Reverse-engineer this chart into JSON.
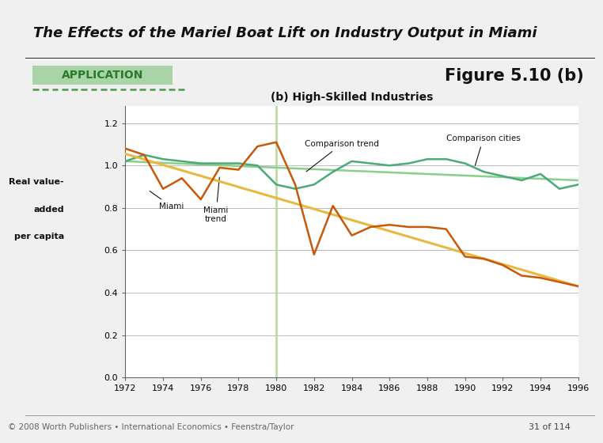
{
  "title": "The Effects of the Mariel Boat Lift on Industry Output in Miami",
  "title_bg": "#4a72b8",
  "subtitle": "APPLICATION",
  "figure_label": "Figure 5.10 (b)",
  "chart_title": "(b) High-Skilled Industries",
  "ylabel_line1": "Real value-",
  "ylabel_line2": "added",
  "ylabel_line3": "per capita",
  "xlim": [
    1972,
    1996
  ],
  "ylim": [
    0.0,
    1.28
  ],
  "yticks": [
    0.0,
    0.2,
    0.4,
    0.6,
    0.8,
    1.0,
    1.2
  ],
  "xticks": [
    1972,
    1974,
    1976,
    1978,
    1980,
    1982,
    1984,
    1986,
    1988,
    1990,
    1992,
    1994,
    1996
  ],
  "vline_x": 1980,
  "vline_color": "#b8d89a",
  "footer": "© 2008 Worth Publishers • International Economics • Feenstra/Taylor",
  "page": "31 of 114",
  "miami_x": [
    1972,
    1973,
    1974,
    1975,
    1976,
    1977,
    1978,
    1979,
    1980,
    1981,
    1982,
    1983,
    1984,
    1985,
    1986,
    1987,
    1988,
    1989,
    1990,
    1991,
    1992,
    1993,
    1994,
    1995,
    1996
  ],
  "miami_y": [
    1.08,
    1.05,
    0.89,
    0.94,
    0.84,
    0.99,
    0.98,
    1.09,
    1.11,
    0.91,
    0.58,
    0.81,
    0.67,
    0.71,
    0.72,
    0.71,
    0.71,
    0.7,
    0.57,
    0.56,
    0.53,
    0.48,
    0.47,
    0.45,
    0.43
  ],
  "miami_color": "#c8580a",
  "miami_trend_x": [
    1972,
    1996
  ],
  "miami_trend_y": [
    1.055,
    0.43
  ],
  "miami_trend_color": "#e8b840",
  "comparison_cities_x": [
    1972,
    1973,
    1974,
    1975,
    1976,
    1977,
    1978,
    1979,
    1980,
    1981,
    1982,
    1983,
    1984,
    1985,
    1986,
    1987,
    1988,
    1989,
    1990,
    1991,
    1992,
    1993,
    1994,
    1995,
    1996
  ],
  "comparison_cities_y": [
    1.02,
    1.05,
    1.03,
    1.02,
    1.01,
    1.01,
    1.01,
    1.0,
    0.91,
    0.89,
    0.91,
    0.97,
    1.02,
    1.01,
    1.0,
    1.01,
    1.03,
    1.03,
    1.01,
    0.97,
    0.95,
    0.93,
    0.96,
    0.89,
    0.91
  ],
  "comparison_cities_color": "#4aaa78",
  "comparison_trend_x": [
    1972,
    1996
  ],
  "comparison_trend_y": [
    1.02,
    0.93
  ],
  "comparison_trend_color": "#8acf8a",
  "bg_color": "#e8e8e8",
  "plot_bg": "#ffffff",
  "white_area_bg": "#f0f0f0"
}
